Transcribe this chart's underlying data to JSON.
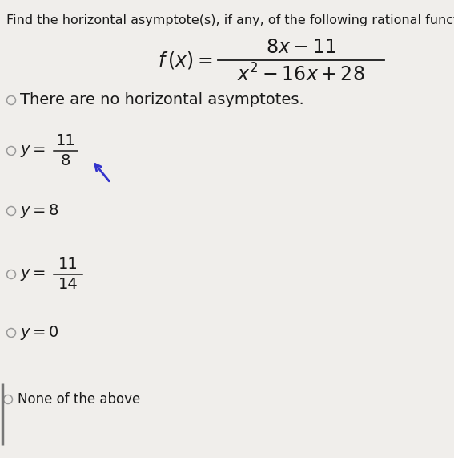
{
  "bg_color": "#f0eeeb",
  "title_text": "Find the horizontal asymptote(s), if any, of the following rational function:",
  "title_fontsize": 11.5,
  "text_color": "#1a1a1a",
  "radio_color": "#999999",
  "arrow_color": "#3333cc",
  "func_fontsize": 15,
  "option_fontsize": 14,
  "small_fontsize": 11,
  "fraction_line_color": "#1a1a1a",
  "left_border_color": "#555555",
  "fig_width": 5.67,
  "fig_height": 5.71,
  "dpi": 100
}
